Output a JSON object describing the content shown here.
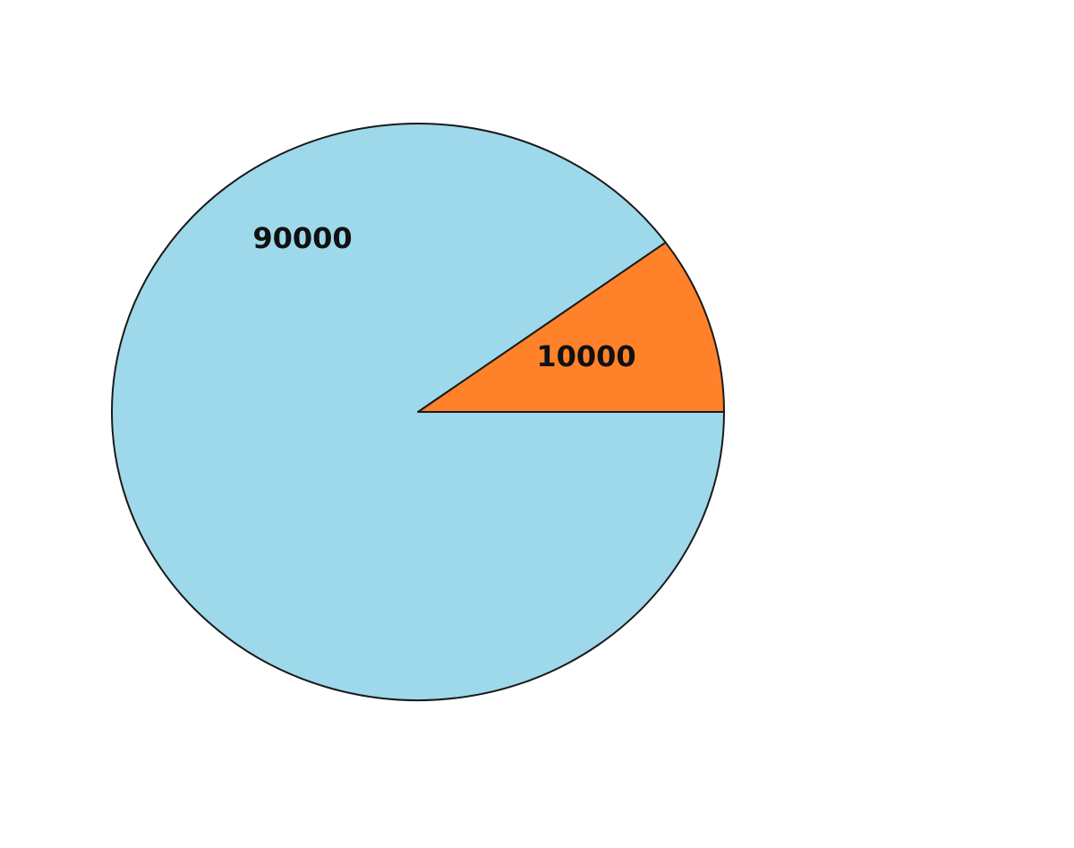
{
  "chart_data": {
    "type": "pie",
    "title": "",
    "slices": [
      {
        "label": "10000",
        "value": 10000,
        "color": "#FF8129"
      },
      {
        "label": "90000",
        "value": 90000,
        "color": "#9DD9EA"
      }
    ],
    "legend": "none",
    "grid": false
  }
}
